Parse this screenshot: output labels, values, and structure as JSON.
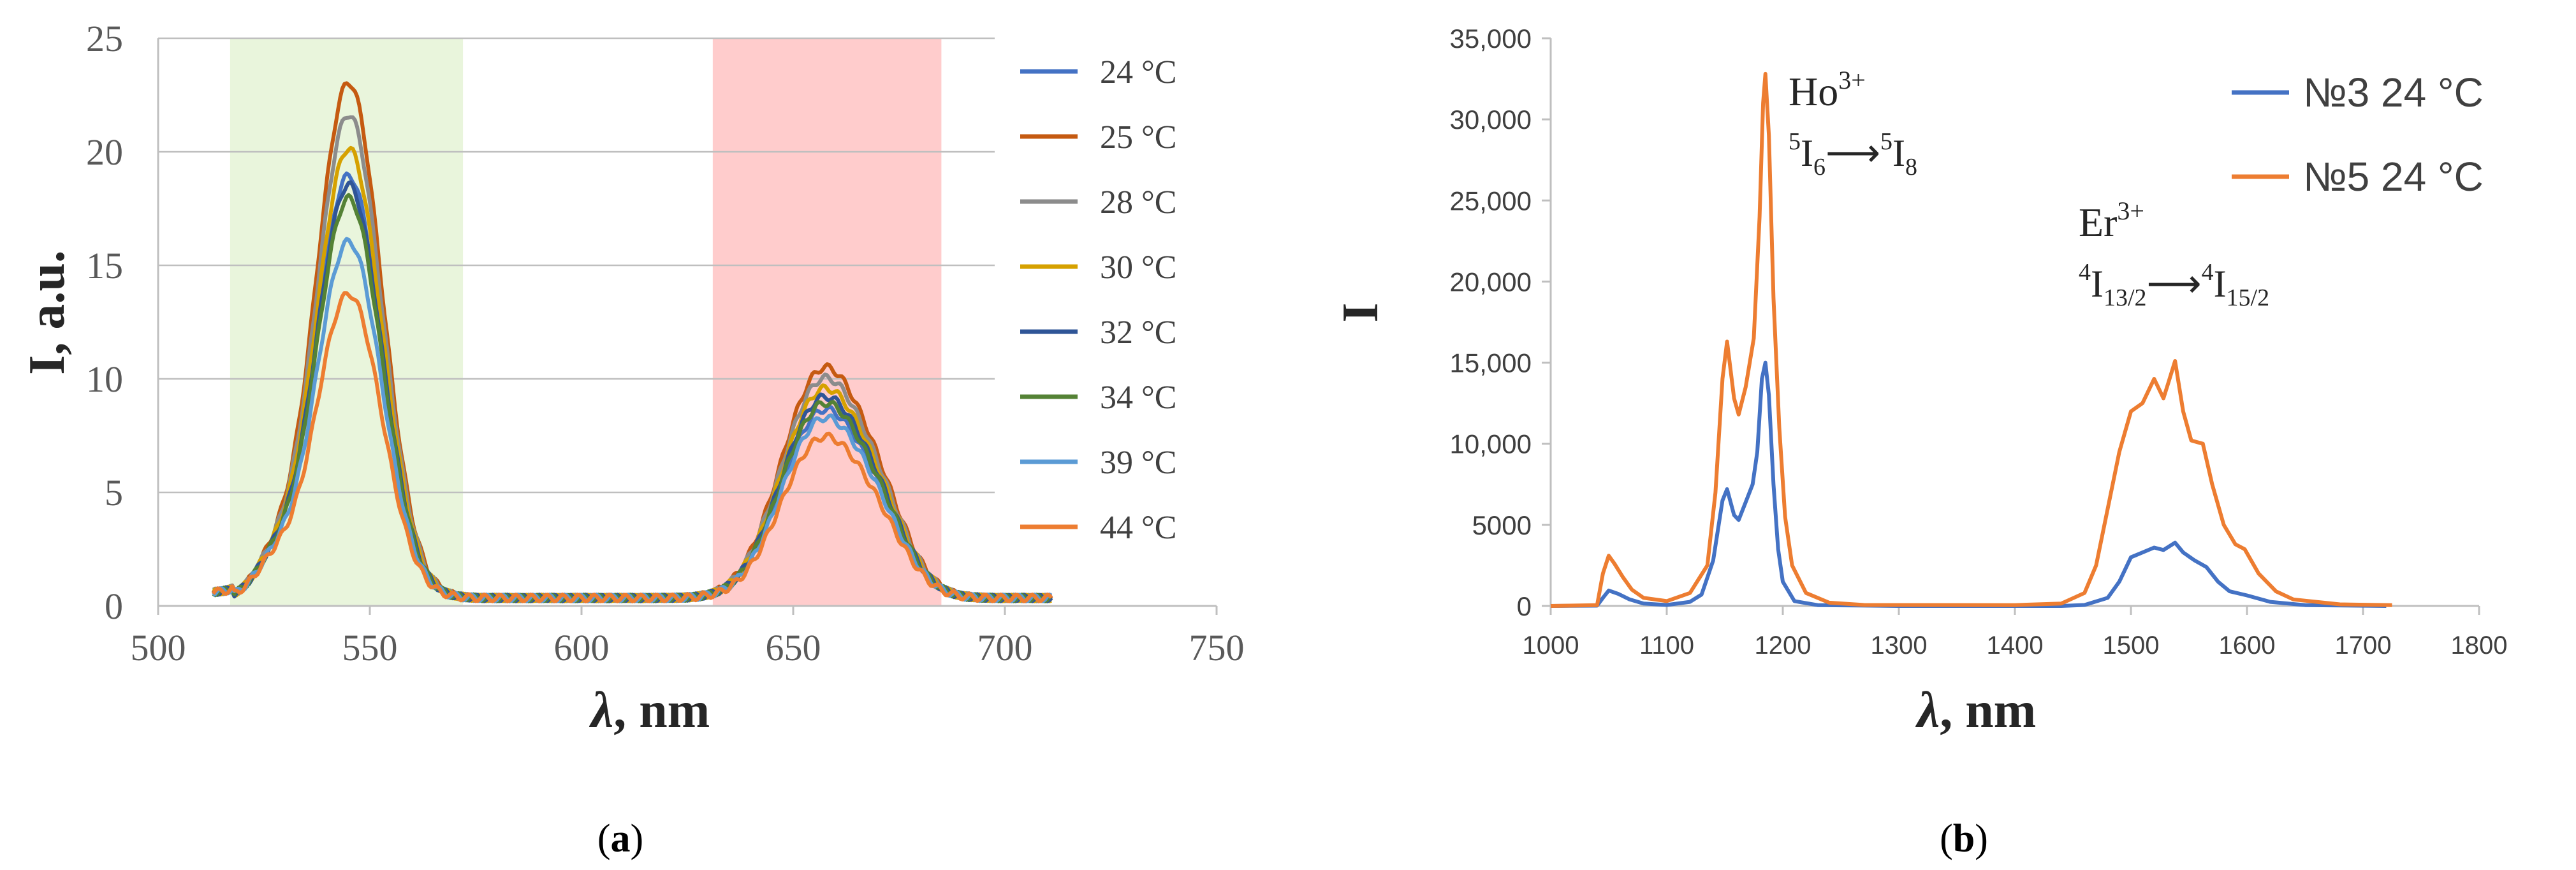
{
  "chart_data": [
    {
      "panel_label": "(a)",
      "panel_label_parts": [
        "(",
        "a",
        ")"
      ],
      "type": "line",
      "xlabel": "λ, nm",
      "xlabel_parts": [
        "λ",
        ", nm"
      ],
      "ylabel": "I, a.u.",
      "xlim": [
        500,
        750
      ],
      "ylim": [
        0,
        25
      ],
      "xticks": [
        500,
        550,
        600,
        650,
        700,
        750
      ],
      "yticks": [
        0,
        5,
        10,
        15,
        20,
        25
      ],
      "grid": "horizontal",
      "legend_position": "right",
      "shaded_bands": [
        {
          "x": [
            517,
            572
          ],
          "color": "#e9f5dc"
        },
        {
          "x": [
            631,
            685
          ],
          "color": "#ffcccc"
        }
      ],
      "series": [
        {
          "name": "24 °C",
          "color": "#4472c4",
          "peak_green": 18.6,
          "peak_red": 9.0
        },
        {
          "name": "25 °C",
          "color": "#c55a11",
          "peak_green": 22.7,
          "peak_red": 11.0
        },
        {
          "name": "28 °C",
          "color": "#8c8c8c",
          "peak_green": 21.3,
          "peak_red": 10.5
        },
        {
          "name": "30 °C",
          "color": "#d6a100",
          "peak_green": 19.8,
          "peak_red": 10.0
        },
        {
          "name": "32 °C",
          "color": "#2f5597",
          "peak_green": 18.2,
          "peak_red": 9.6
        },
        {
          "name": "34 °C",
          "color": "#548235",
          "peak_green": 17.6,
          "peak_red": 9.3
        },
        {
          "name": "39 °C",
          "color": "#5b9bd5",
          "peak_green": 15.7,
          "peak_red": 8.6
        },
        {
          "name": "44 °C",
          "color": "#ed7d31",
          "peak_green": 13.4,
          "peak_red": 7.7
        }
      ]
    },
    {
      "panel_label": "(b)",
      "panel_label_parts": [
        "(",
        "b",
        ")"
      ],
      "type": "line",
      "xlabel": "λ, nm",
      "xlabel_parts": [
        "λ",
        ", nm"
      ],
      "ylabel": "I",
      "xlim": [
        1000,
        1800
      ],
      "ylim": [
        0,
        35000
      ],
      "xticks": [
        1000,
        1100,
        1200,
        1300,
        1400,
        1500,
        1600,
        1700,
        1800
      ],
      "yticks": [
        0,
        5000,
        10000,
        15000,
        20000,
        25000,
        30000,
        35000
      ],
      "ytick_labels": [
        "0",
        "5000",
        "10,000",
        "15,000",
        "20,000",
        "25,000",
        "30,000",
        "35,000"
      ],
      "legend_position": "top-right",
      "annotations": [
        {
          "ion": "Ho",
          "ion_sup": "3+",
          "t1_sup": "5",
          "t1": "I",
          "t1_sub": "6",
          "arrow": "⟶",
          "t2_sup": "5",
          "t2": "I",
          "t2_sub": "8",
          "x": 1190,
          "y": 31000
        },
        {
          "ion": "Er",
          "ion_sup": "3+",
          "t1_sup": "4",
          "t1": "I",
          "t1_sub": "13/2",
          "arrow": "⟶",
          "t2_sup": "4",
          "t2": "I",
          "t2_sub": "15/2",
          "x": 1530,
          "y": 20000
        }
      ],
      "series": [
        {
          "name": "№3 24 °C",
          "color": "#4472c4",
          "points": [
            [
              1000,
              0
            ],
            [
              1040,
              20
            ],
            [
              1045,
              500
            ],
            [
              1050,
              950
            ],
            [
              1058,
              750
            ],
            [
              1068,
              400
            ],
            [
              1080,
              150
            ],
            [
              1100,
              60
            ],
            [
              1120,
              250
            ],
            [
              1130,
              700
            ],
            [
              1140,
              2800
            ],
            [
              1148,
              6500
            ],
            [
              1152,
              7200
            ],
            [
              1158,
              5600
            ],
            [
              1162,
              5300
            ],
            [
              1168,
              6400
            ],
            [
              1174,
              7500
            ],
            [
              1178,
              9500
            ],
            [
              1182,
              14000
            ],
            [
              1185,
              15000
            ],
            [
              1188,
              13000
            ],
            [
              1192,
              7500
            ],
            [
              1196,
              3500
            ],
            [
              1200,
              1500
            ],
            [
              1210,
              300
            ],
            [
              1230,
              50
            ],
            [
              1300,
              0
            ],
            [
              1440,
              0
            ],
            [
              1460,
              60
            ],
            [
              1480,
              500
            ],
            [
              1490,
              1500
            ],
            [
              1500,
              3000
            ],
            [
              1510,
              3300
            ],
            [
              1520,
              3600
            ],
            [
              1528,
              3450
            ],
            [
              1538,
              3900
            ],
            [
              1545,
              3300
            ],
            [
              1555,
              2800
            ],
            [
              1565,
              2400
            ],
            [
              1575,
              1500
            ],
            [
              1585,
              900
            ],
            [
              1600,
              650
            ],
            [
              1620,
              250
            ],
            [
              1650,
              50
            ],
            [
              1720,
              0
            ]
          ]
        },
        {
          "name": "№5 24 °C",
          "color": "#ed7d31",
          "points": [
            [
              1000,
              0
            ],
            [
              1040,
              50
            ],
            [
              1045,
              2000
            ],
            [
              1050,
              3100
            ],
            [
              1055,
              2600
            ],
            [
              1062,
              1800
            ],
            [
              1070,
              1000
            ],
            [
              1080,
              500
            ],
            [
              1100,
              300
            ],
            [
              1120,
              800
            ],
            [
              1135,
              2500
            ],
            [
              1142,
              7000
            ],
            [
              1148,
              14000
            ],
            [
              1152,
              16300
            ],
            [
              1158,
              12800
            ],
            [
              1162,
              11800
            ],
            [
              1168,
              13500
            ],
            [
              1175,
              16500
            ],
            [
              1180,
              24000
            ],
            [
              1183,
              31000
            ],
            [
              1185,
              32800
            ],
            [
              1188,
              29000
            ],
            [
              1192,
              19000
            ],
            [
              1197,
              11000
            ],
            [
              1202,
              5500
            ],
            [
              1208,
              2500
            ],
            [
              1220,
              800
            ],
            [
              1240,
              200
            ],
            [
              1270,
              60
            ],
            [
              1400,
              50
            ],
            [
              1440,
              150
            ],
            [
              1460,
              800
            ],
            [
              1470,
              2500
            ],
            [
              1480,
              6000
            ],
            [
              1490,
              9500
            ],
            [
              1500,
              12000
            ],
            [
              1510,
              12500
            ],
            [
              1520,
              14000
            ],
            [
              1528,
              12800
            ],
            [
              1532,
              13700
            ],
            [
              1538,
              15100
            ],
            [
              1545,
              12000
            ],
            [
              1552,
              10200
            ],
            [
              1562,
              10000
            ],
            [
              1570,
              7500
            ],
            [
              1580,
              5000
            ],
            [
              1590,
              3800
            ],
            [
              1598,
              3500
            ],
            [
              1610,
              2000
            ],
            [
              1625,
              900
            ],
            [
              1640,
              400
            ],
            [
              1680,
              100
            ],
            [
              1725,
              50
            ]
          ]
        }
      ]
    }
  ]
}
